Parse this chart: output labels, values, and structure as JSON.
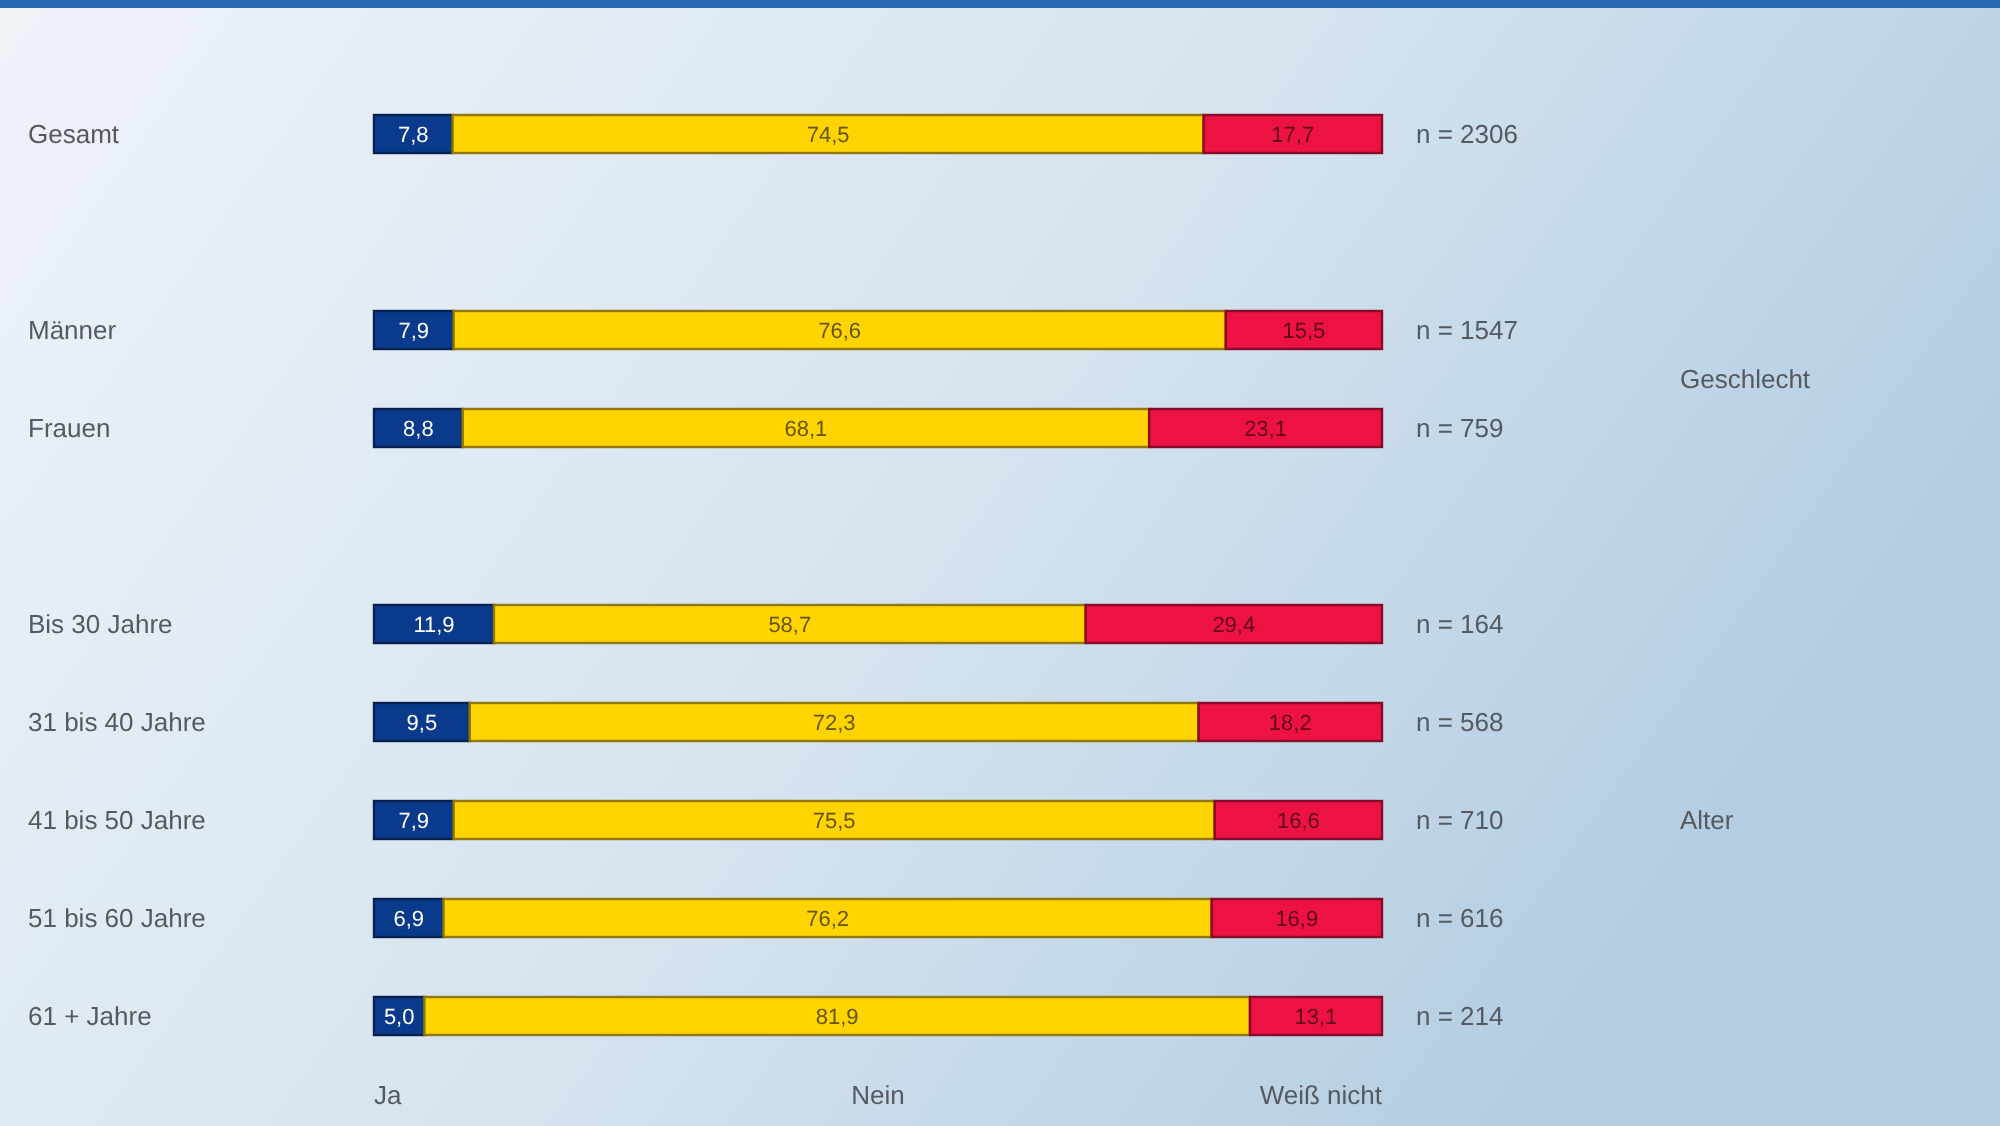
{
  "chart_data": {
    "type": "bar",
    "orientation": "horizontal",
    "stacked": true,
    "categories": [
      "Gesamt",
      null,
      "Männer",
      "Frauen",
      null,
      "Bis 30 Jahre",
      "31 bis 40 Jahre",
      "41 bis 50 Jahre",
      "51 bis 60 Jahre",
      "61 + Jahre"
    ],
    "xlim": [
      0,
      100
    ],
    "series": [
      {
        "name": "Ja",
        "color": "#0a3a8c",
        "values": [
          7.8,
          null,
          7.9,
          8.8,
          null,
          11.9,
          9.5,
          7.9,
          6.9,
          5.0
        ],
        "value_labels": [
          "7,8",
          null,
          "7,9",
          "8,8",
          null,
          "11,9",
          "9,5",
          "7,9",
          "6,9",
          "5,0"
        ]
      },
      {
        "name": "Nein",
        "color": "#ffd400",
        "values": [
          74.5,
          null,
          76.6,
          68.1,
          null,
          58.7,
          72.3,
          75.5,
          76.2,
          81.9
        ],
        "value_labels": [
          "74,5",
          null,
          "76,6",
          "68,1",
          null,
          "58,7",
          "72,3",
          "75,5",
          "76,2",
          "81,9"
        ]
      },
      {
        "name": "Weiß nicht",
        "color": "#ee1144",
        "values": [
          17.7,
          null,
          15.5,
          23.1,
          null,
          29.4,
          18.2,
          16.6,
          16.9,
          13.1
        ],
        "value_labels": [
          "17,7",
          null,
          "15,5",
          "23,1",
          null,
          "29,4",
          "18,2",
          "16,6",
          "16,9",
          "13,1"
        ]
      }
    ],
    "legend": "bottom",
    "annotations": [
      "n = 2306",
      "n = 1547",
      "n = 759",
      "n = 164",
      "n = 568",
      "n = 710",
      "n = 616",
      "n = 214",
      "Geschlecht",
      "Alter"
    ]
  }
}
